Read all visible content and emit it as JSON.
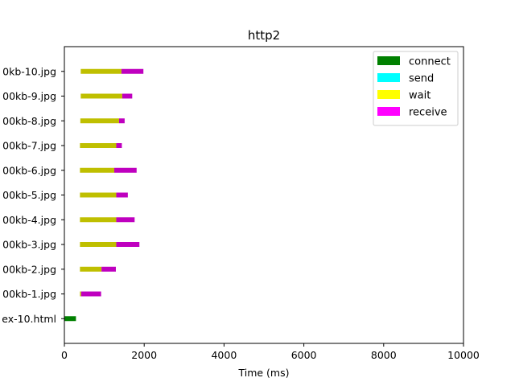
{
  "chart_data": {
    "type": "bar",
    "orientation": "horizontal-stacked",
    "title": "http2",
    "xlabel": "Time (ms)",
    "ylabel": "",
    "xlim": [
      0,
      10000
    ],
    "xticks": [
      0,
      2000,
      4000,
      6000,
      8000,
      10000
    ],
    "xtick_labels": [
      "0",
      "2000",
      "4000",
      "6000",
      "8000",
      "10000"
    ],
    "grid": false,
    "legend_position": "top-right",
    "categories": [
      "ex-10.html",
      "00kb-1.jpg",
      "00kb-2.jpg",
      "00kb-3.jpg",
      "00kb-4.jpg",
      "00kb-5.jpg",
      "00kb-6.jpg",
      "00kb-7.jpg",
      "00kb-8.jpg",
      "00kb-9.jpg",
      "0kb-10.jpg"
    ],
    "series": [
      {
        "name": "connect",
        "color": "#008000",
        "legend_color": "#008000",
        "starts": [
          0,
          0,
          0,
          0,
          0,
          0,
          0,
          0,
          0,
          0,
          0
        ],
        "values": [
          290,
          0,
          0,
          0,
          0,
          0,
          0,
          0,
          0,
          0,
          0
        ]
      },
      {
        "name": "send",
        "color": "#00bfbf",
        "legend_color": "#00ffff",
        "starts": [
          290,
          390,
          390,
          390,
          390,
          390,
          390,
          390,
          400,
          410,
          410
        ],
        "values": [
          0,
          0,
          0,
          0,
          0,
          0,
          0,
          0,
          0,
          0,
          0
        ]
      },
      {
        "name": "wait",
        "color": "#bfbf00",
        "legend_color": "#ffff00",
        "starts": [
          290,
          390,
          390,
          390,
          390,
          390,
          390,
          390,
          400,
          410,
          410
        ],
        "values": [
          0,
          30,
          540,
          910,
          910,
          910,
          860,
          910,
          970,
          1040,
          1020
        ]
      },
      {
        "name": "receive",
        "color": "#bf00bf",
        "legend_color": "#ff00ff",
        "starts": [
          290,
          420,
          930,
          1300,
          1300,
          1300,
          1250,
          1300,
          1370,
          1450,
          1430
        ],
        "values": [
          0,
          500,
          360,
          580,
          460,
          290,
          560,
          140,
          140,
          250,
          550
        ]
      }
    ]
  }
}
